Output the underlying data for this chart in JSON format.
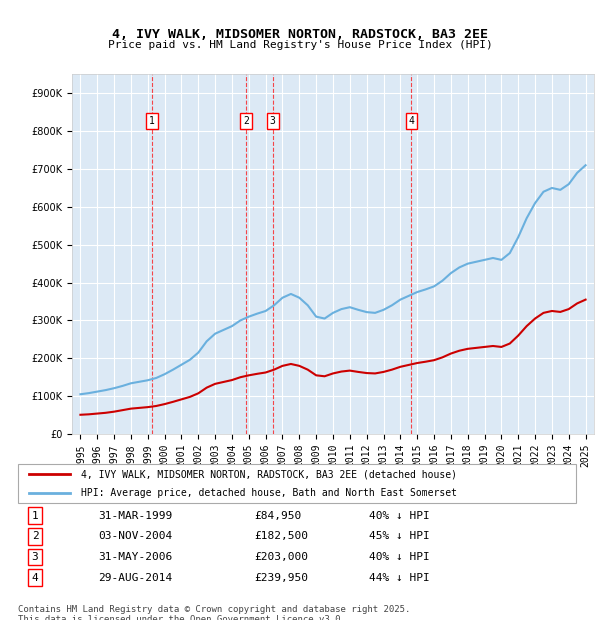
{
  "title": "4, IVY WALK, MIDSOMER NORTON, RADSTOCK, BA3 2EE",
  "subtitle": "Price paid vs. HM Land Registry's House Price Index (HPI)",
  "ylabel": "",
  "background_color": "#dce9f5",
  "plot_bg_color": "#dce9f5",
  "hpi_color": "#6ab0de",
  "price_color": "#cc0000",
  "ylim": [
    0,
    950000
  ],
  "yticks": [
    0,
    100000,
    200000,
    300000,
    400000,
    500000,
    600000,
    700000,
    800000,
    900000
  ],
  "ytick_labels": [
    "£0",
    "£100K",
    "£200K",
    "£300K",
    "£400K",
    "£500K",
    "£600K",
    "£700K",
    "£800K",
    "£900K"
  ],
  "transactions": [
    {
      "num": 1,
      "date": "31-MAR-1999",
      "price": 84950,
      "pct": "40%",
      "year": 1999.25
    },
    {
      "num": 2,
      "date": "03-NOV-2004",
      "price": 182500,
      "pct": "45%",
      "year": 2004.83
    },
    {
      "num": 3,
      "date": "31-MAY-2006",
      "price": 203000,
      "pct": "40%",
      "year": 2006.42
    },
    {
      "num": 4,
      "date": "29-AUG-2014",
      "price": 239950,
      "pct": "44%",
      "year": 2014.66
    }
  ],
  "legend_label_red": "4, IVY WALK, MIDSOMER NORTON, RADSTOCK, BA3 2EE (detached house)",
  "legend_label_blue": "HPI: Average price, detached house, Bath and North East Somerset",
  "footnote": "Contains HM Land Registry data © Crown copyright and database right 2025.\nThis data is licensed under the Open Government Licence v3.0.",
  "hpi_x": [
    1995,
    1995.5,
    1996,
    1996.5,
    1997,
    1997.5,
    1998,
    1998.5,
    1999,
    1999.5,
    2000,
    2000.5,
    2001,
    2001.5,
    2002,
    2002.5,
    2003,
    2003.5,
    2004,
    2004.5,
    2005,
    2005.5,
    2006,
    2006.5,
    2007,
    2007.5,
    2008,
    2008.5,
    2009,
    2009.5,
    2010,
    2010.5,
    2011,
    2011.5,
    2012,
    2012.5,
    2013,
    2013.5,
    2014,
    2014.5,
    2015,
    2015.5,
    2016,
    2016.5,
    2017,
    2017.5,
    2018,
    2018.5,
    2019,
    2019.5,
    2020,
    2020.5,
    2021,
    2021.5,
    2022,
    2022.5,
    2023,
    2023.5,
    2024,
    2024.5,
    2025
  ],
  "hpi_y": [
    105000,
    108000,
    112000,
    116000,
    121000,
    127000,
    134000,
    138000,
    142000,
    148000,
    158000,
    170000,
    183000,
    196000,
    215000,
    245000,
    265000,
    275000,
    285000,
    300000,
    310000,
    318000,
    325000,
    340000,
    360000,
    370000,
    360000,
    340000,
    310000,
    305000,
    320000,
    330000,
    335000,
    328000,
    322000,
    320000,
    328000,
    340000,
    355000,
    365000,
    375000,
    382000,
    390000,
    405000,
    425000,
    440000,
    450000,
    455000,
    460000,
    465000,
    460000,
    478000,
    520000,
    570000,
    610000,
    640000,
    650000,
    645000,
    660000,
    690000,
    710000
  ],
  "price_x": [
    1995,
    1995.5,
    1996,
    1996.5,
    1997,
    1997.5,
    1998,
    1998.5,
    1999,
    1999.5,
    2000,
    2000.5,
    2001,
    2001.5,
    2002,
    2002.5,
    2003,
    2003.5,
    2004,
    2004.5,
    2005,
    2005.5,
    2006,
    2006.5,
    2007,
    2007.5,
    2008,
    2008.5,
    2009,
    2009.5,
    2010,
    2010.5,
    2011,
    2011.5,
    2012,
    2012.5,
    2013,
    2013.5,
    2014,
    2014.5,
    2015,
    2015.5,
    2016,
    2016.5,
    2017,
    2017.5,
    2018,
    2018.5,
    2019,
    2019.5,
    2020,
    2020.5,
    2021,
    2021.5,
    2022,
    2022.5,
    2023,
    2023.5,
    2024,
    2024.5,
    2025
  ],
  "price_y": [
    50800,
    52000,
    54000,
    56000,
    59000,
    63000,
    67000,
    69000,
    71000,
    74000,
    79000,
    85000,
    91500,
    98000,
    107500,
    122500,
    132500,
    137500,
    142500,
    150000,
    155000,
    159000,
    162500,
    170000,
    180000,
    185000,
    180000,
    170000,
    155000,
    152500,
    160000,
    165000,
    167500,
    164000,
    161000,
    160000,
    164000,
    170000,
    177500,
    182500,
    187500,
    191000,
    195000,
    202500,
    212500,
    220000,
    225000,
    227500,
    230000,
    232500,
    230000,
    239000,
    260000,
    285000,
    305000,
    320000,
    325000,
    322500,
    330000,
    345000,
    355000
  ],
  "xlim": [
    1994.5,
    2025.5
  ],
  "xticks": [
    1995,
    1996,
    1997,
    1998,
    1999,
    2000,
    2001,
    2002,
    2003,
    2004,
    2005,
    2006,
    2007,
    2008,
    2009,
    2010,
    2011,
    2012,
    2013,
    2014,
    2015,
    2016,
    2017,
    2018,
    2019,
    2020,
    2021,
    2022,
    2023,
    2024,
    2025
  ]
}
